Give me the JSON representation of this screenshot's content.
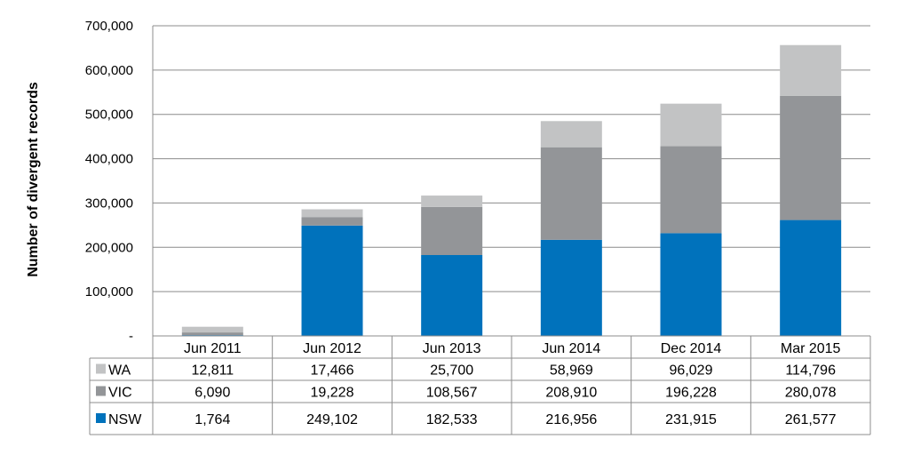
{
  "chart_data": {
    "type": "bar",
    "stacked": true,
    "title": "",
    "xlabel": "",
    "ylabel": "Number of divergent records",
    "ylim": [
      0,
      700000
    ],
    "yticks": [
      0,
      100000,
      200000,
      300000,
      400000,
      500000,
      600000,
      700000
    ],
    "ytick_labels": [
      "-",
      "100,000",
      "200,000",
      "300,000",
      "400,000",
      "500,000",
      "600,000",
      "700,000"
    ],
    "grid": true,
    "legend": "data-table",
    "categories": [
      "Jun 2011",
      "Jun 2012",
      "Jun 2013",
      "Jun 2014",
      "Dec 2014",
      "Mar 2015"
    ],
    "series": [
      {
        "name": "NSW",
        "color": "#0072bc",
        "values": [
          1764,
          249102,
          182533,
          216956,
          231915,
          261577
        ],
        "labels": [
          "1,764",
          "249,102",
          "182,533",
          "216,956",
          "231,915",
          "261,577"
        ]
      },
      {
        "name": "VIC",
        "color": "#939598",
        "values": [
          6090,
          19228,
          108567,
          208910,
          196228,
          280078
        ],
        "labels": [
          "6,090",
          "19,228",
          "108,567",
          "208,910",
          "196,228",
          "280,078"
        ]
      },
      {
        "name": "WA",
        "color": "#c2c3c4",
        "values": [
          12811,
          17466,
          25700,
          58969,
          96029,
          114796
        ],
        "labels": [
          "12,811",
          "17,466",
          "25,700",
          "58,969",
          "96,029",
          "114,796"
        ]
      }
    ],
    "table_row_order": [
      "WA",
      "VIC",
      "NSW"
    ]
  }
}
